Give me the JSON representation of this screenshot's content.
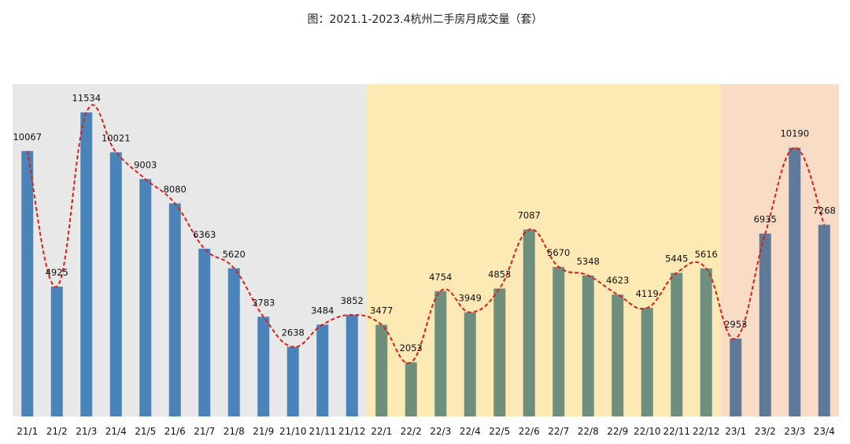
{
  "title": "图：2021.1-2023.4杭州二手房月成交量（套）",
  "colors": {
    "bg_2021": "#e8e8e8",
    "bg_2022": "#fde9b3",
    "bg_2023": "#f8dcc6",
    "bar_2021": "#4a83b8",
    "bar_2022": "#6e8f7e",
    "bar_2023": "#5f7a99",
    "trend_line": "#d9201c"
  },
  "chart_data": {
    "type": "bar",
    "title": "图：2021.1-2023.4杭州二手房月成交量（套）",
    "xlabel": "",
    "ylabel": "",
    "ylim": [
      0,
      12600
    ],
    "grid": false,
    "legend": "none",
    "categories": [
      "21/1",
      "21/2",
      "21/3",
      "21/4",
      "21/5",
      "21/6",
      "21/7",
      "21/8",
      "21/9",
      "21/10",
      "21/11",
      "21/12",
      "22/1",
      "22/2",
      "22/3",
      "22/4",
      "22/5",
      "22/6",
      "22/7",
      "22/8",
      "22/9",
      "22/10",
      "22/11",
      "22/12",
      "23/1",
      "23/2",
      "23/3",
      "23/4"
    ],
    "values": [
      10067,
      4925,
      11534,
      10021,
      9003,
      8080,
      6363,
      5620,
      3783,
      2638,
      3484,
      3852,
      3477,
      2053,
      4754,
      3949,
      4853,
      7087,
      5670,
      5348,
      4623,
      4119,
      5445,
      5616,
      2953,
      6935,
      10190,
      7268
    ],
    "year_groups": [
      {
        "year": "2021",
        "start": 0,
        "end": 11
      },
      {
        "year": "2022",
        "start": 12,
        "end": 23
      },
      {
        "year": "2023",
        "start": 24,
        "end": 27
      }
    ],
    "trend_line": {
      "style": "dashed",
      "smooth": true
    }
  }
}
